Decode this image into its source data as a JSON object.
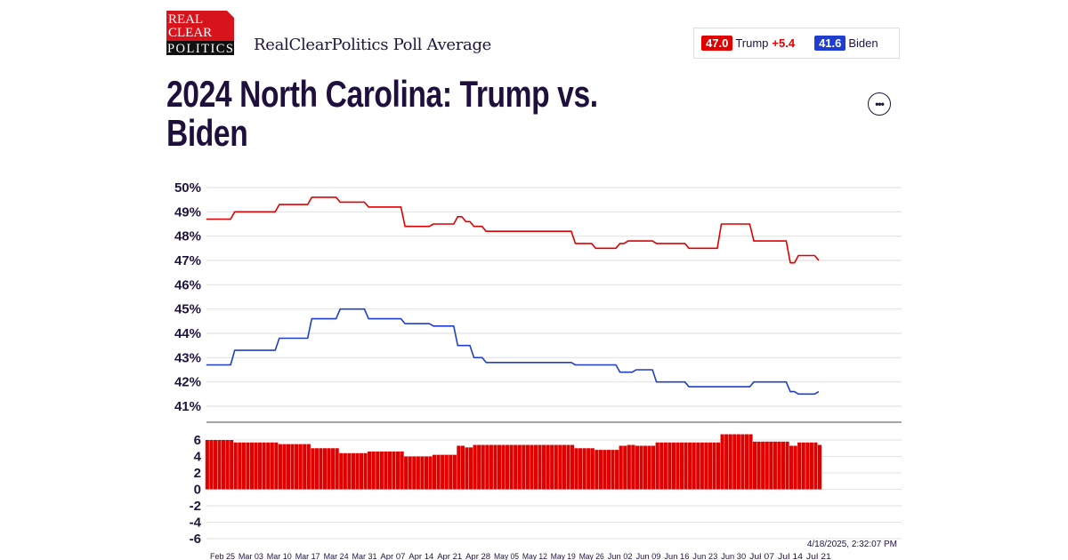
{
  "header": {
    "logo_text": [
      "REAL",
      "CLEAR",
      "POLITICS"
    ],
    "subtitle": "RealClearPolitics Poll Average",
    "more_button": "•••"
  },
  "legend": {
    "trump": {
      "value": "47.0",
      "name": "Trump",
      "spread": "+5.4"
    },
    "biden": {
      "value": "41.6",
      "name": "Biden"
    }
  },
  "colors": {
    "trump": "#e00000",
    "biden": "#1f3ecf",
    "text": "#1f0f3d"
  },
  "timestamp": "4/18/2025, 2:32:07 PM",
  "chart_data": [
    {
      "type": "line",
      "title": "2024 North Carolina: Trump vs. Biden",
      "ylim": [
        41,
        50
      ],
      "yticks": [
        "50%",
        "49%",
        "48%",
        "47%",
        "46%",
        "45%",
        "44%",
        "43%",
        "42%",
        "41%"
      ],
      "grid": true,
      "series": [
        {
          "name": "Trump",
          "color": "#e00000",
          "steps": [
            [
              "2024-02-21",
              48.7
            ],
            [
              "2024-02-28",
              49.0
            ],
            [
              "2024-03-10",
              49.3
            ],
            [
              "2024-03-18",
              49.6
            ],
            [
              "2024-03-25",
              49.4
            ],
            [
              "2024-04-01",
              49.2
            ],
            [
              "2024-04-10",
              48.4
            ],
            [
              "2024-04-17",
              48.5
            ],
            [
              "2024-04-23",
              48.8
            ],
            [
              "2024-04-25",
              48.6
            ],
            [
              "2024-04-27",
              48.4
            ],
            [
              "2024-04-30",
              48.2
            ],
            [
              "2024-05-22",
              47.7
            ],
            [
              "2024-05-27",
              47.5
            ],
            [
              "2024-06-02",
              47.7
            ],
            [
              "2024-06-04",
              47.8
            ],
            [
              "2024-06-11",
              47.7
            ],
            [
              "2024-06-19",
              47.5
            ],
            [
              "2024-06-27",
              48.5
            ],
            [
              "2024-07-05",
              47.8
            ],
            [
              "2024-07-14",
              46.9
            ],
            [
              "2024-07-16",
              47.2
            ],
            [
              "2024-07-21",
              47.0
            ]
          ]
        },
        {
          "name": "Biden",
          "color": "#1f3ecf",
          "steps": [
            [
              "2024-02-21",
              42.7
            ],
            [
              "2024-02-28",
              43.3
            ],
            [
              "2024-03-10",
              43.8
            ],
            [
              "2024-03-18",
              44.6
            ],
            [
              "2024-03-25",
              45.0
            ],
            [
              "2024-04-01",
              44.6
            ],
            [
              "2024-04-10",
              44.4
            ],
            [
              "2024-04-17",
              44.3
            ],
            [
              "2024-04-23",
              43.5
            ],
            [
              "2024-04-27",
              43.0
            ],
            [
              "2024-04-30",
              42.8
            ],
            [
              "2024-05-22",
              42.7
            ],
            [
              "2024-06-02",
              42.4
            ],
            [
              "2024-06-06",
              42.5
            ],
            [
              "2024-06-11",
              42.0
            ],
            [
              "2024-06-19",
              41.8
            ],
            [
              "2024-07-05",
              42.0
            ],
            [
              "2024-07-14",
              41.6
            ],
            [
              "2024-07-16",
              41.5
            ],
            [
              "2024-07-21",
              41.6
            ]
          ]
        }
      ]
    },
    {
      "type": "bar",
      "description_of_values": "Trump minus Biden spread",
      "ylim": [
        -6,
        6
      ],
      "yticks": [
        "6",
        "4",
        "2",
        "0",
        "-2",
        "-4",
        "-6"
      ],
      "color": "#e00000",
      "grid": true
    }
  ],
  "xaxis": {
    "ticks": [
      "Feb 25",
      "Mar 03",
      "Mar 10",
      "Mar 17",
      "Mar 24",
      "Mar 31",
      "Apr 07",
      "Apr 14",
      "Apr 21",
      "Apr 28",
      "May 05",
      "May 12",
      "May 19",
      "May 26",
      "Jun 02",
      "Jun 09",
      "Jun 16",
      "Jun 23",
      "Jun 30",
      "Jul 07",
      "Jul 14",
      "Jul 21"
    ]
  }
}
